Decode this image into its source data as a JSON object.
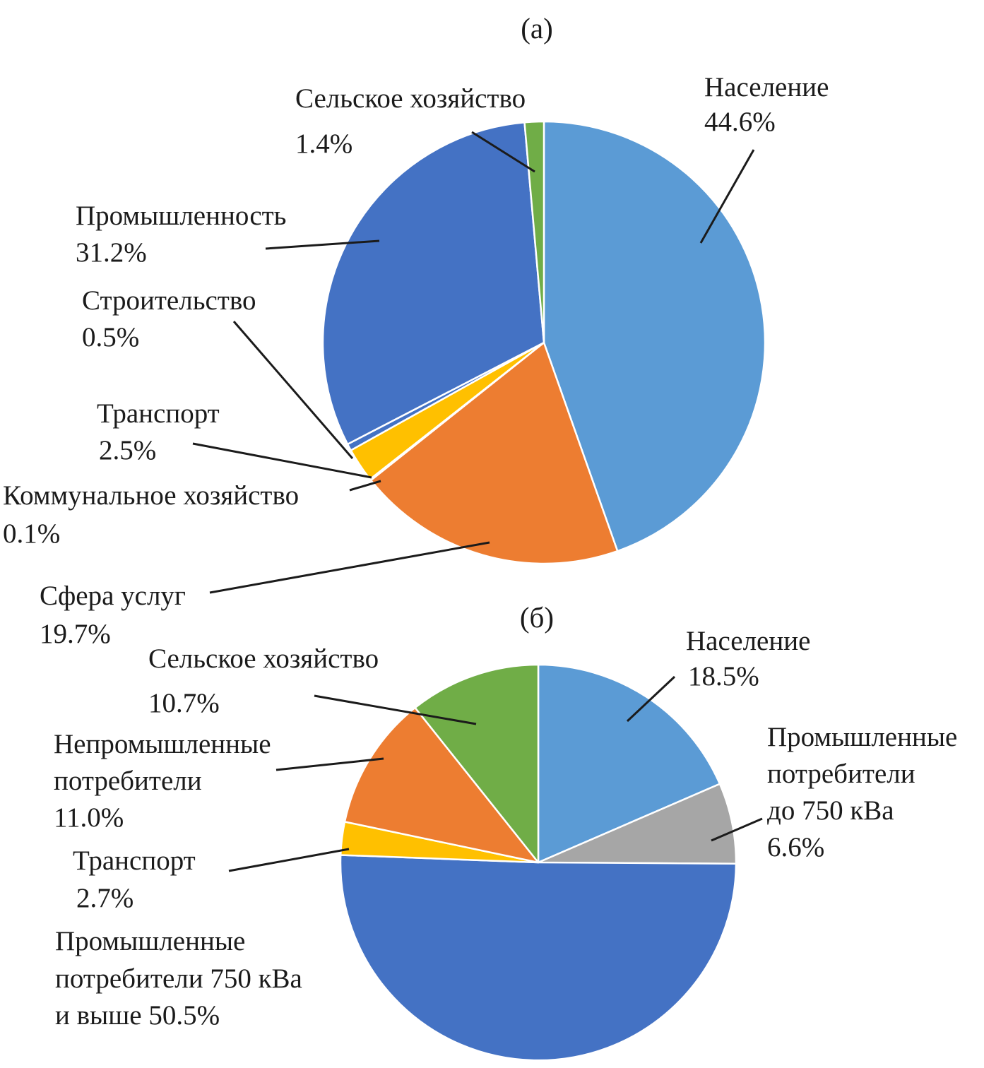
{
  "figure": {
    "background": "#ffffff",
    "text_color": "#1b1b1b"
  },
  "chart_data": [
    {
      "type": "pie",
      "title": "(а)",
      "legend": "none",
      "labels_position": "external with leader lines",
      "slice_order": "clockwise from 12 o'clock",
      "categories": [
        "Население",
        "Сфера услуг",
        "Коммунальное хозяйство",
        "Транспорт",
        "Строительство",
        "Промышленность",
        "Сельское хозяйство"
      ],
      "values": [
        44.6,
        19.7,
        0.1,
        2.5,
        0.5,
        31.2,
        1.4
      ],
      "colors": [
        "#5B9BD5",
        "#ED7D31",
        "#FFFFFF",
        "#FFC000",
        "#4472C4",
        "#4472C4",
        "#70AD47"
      ],
      "annotations": [
        {
          "id": "selskoe-khozyaystvo",
          "lines": [
            "Сельское хозяйство",
            "1.4%"
          ]
        },
        {
          "id": "naselenie",
          "lines": [
            "Население",
            "44.6%"
          ]
        },
        {
          "id": "promyshlennost",
          "lines": [
            "Промышленность",
            "31.2%"
          ]
        },
        {
          "id": "stroitelstvo",
          "lines": [
            "Строительство",
            "0.5%"
          ]
        },
        {
          "id": "transport",
          "lines": [
            "Транспорт",
            "2.5%"
          ]
        },
        {
          "id": "kommunalnoe-khozyaystvo",
          "lines": [
            "Коммунальное хозяйство",
            "0.1%"
          ]
        },
        {
          "id": "sfera-uslug",
          "lines": [
            "Сфера услуг",
            "19.7%"
          ]
        }
      ]
    },
    {
      "type": "pie",
      "title": "(б)",
      "legend": "none",
      "labels_position": "external with leader lines",
      "slice_order": "clockwise from 12 o'clock",
      "categories": [
        "Население",
        "Промышленные потребители до 750 кВа",
        "Промышленные потребители 750 кВа и выше",
        "Транспорт",
        "Непромышленные потребители",
        "Сельское хозяйство"
      ],
      "values": [
        18.5,
        6.6,
        50.5,
        2.7,
        11.0,
        10.7
      ],
      "colors": [
        "#5B9BD5",
        "#A6A6A6",
        "#4472C4",
        "#FFC000",
        "#ED7D31",
        "#70AD47"
      ],
      "annotations": [
        {
          "id": "selskoe-khozyaystvo",
          "lines": [
            "Сельское хозяйство",
            "10.7%"
          ]
        },
        {
          "id": "naselenie",
          "lines": [
            "Население",
            "18.5%"
          ]
        },
        {
          "id": "nepromyshlennye-potrebiteli",
          "lines": [
            "Непромышленные",
            "потребители",
            "11.0%"
          ]
        },
        {
          "id": "transport",
          "lines": [
            "Транспорт",
            "2.7%"
          ]
        },
        {
          "id": "promyshlennye-750-i-vyshe",
          "lines": [
            "Промышленные",
            "потребители 750 кВа",
            "и выше 50.5%"
          ]
        },
        {
          "id": "promyshlennye-do-750",
          "lines": [
            "Промышленные",
            "потребители",
            "до 750 кВа",
            "6.6%"
          ]
        }
      ]
    }
  ]
}
